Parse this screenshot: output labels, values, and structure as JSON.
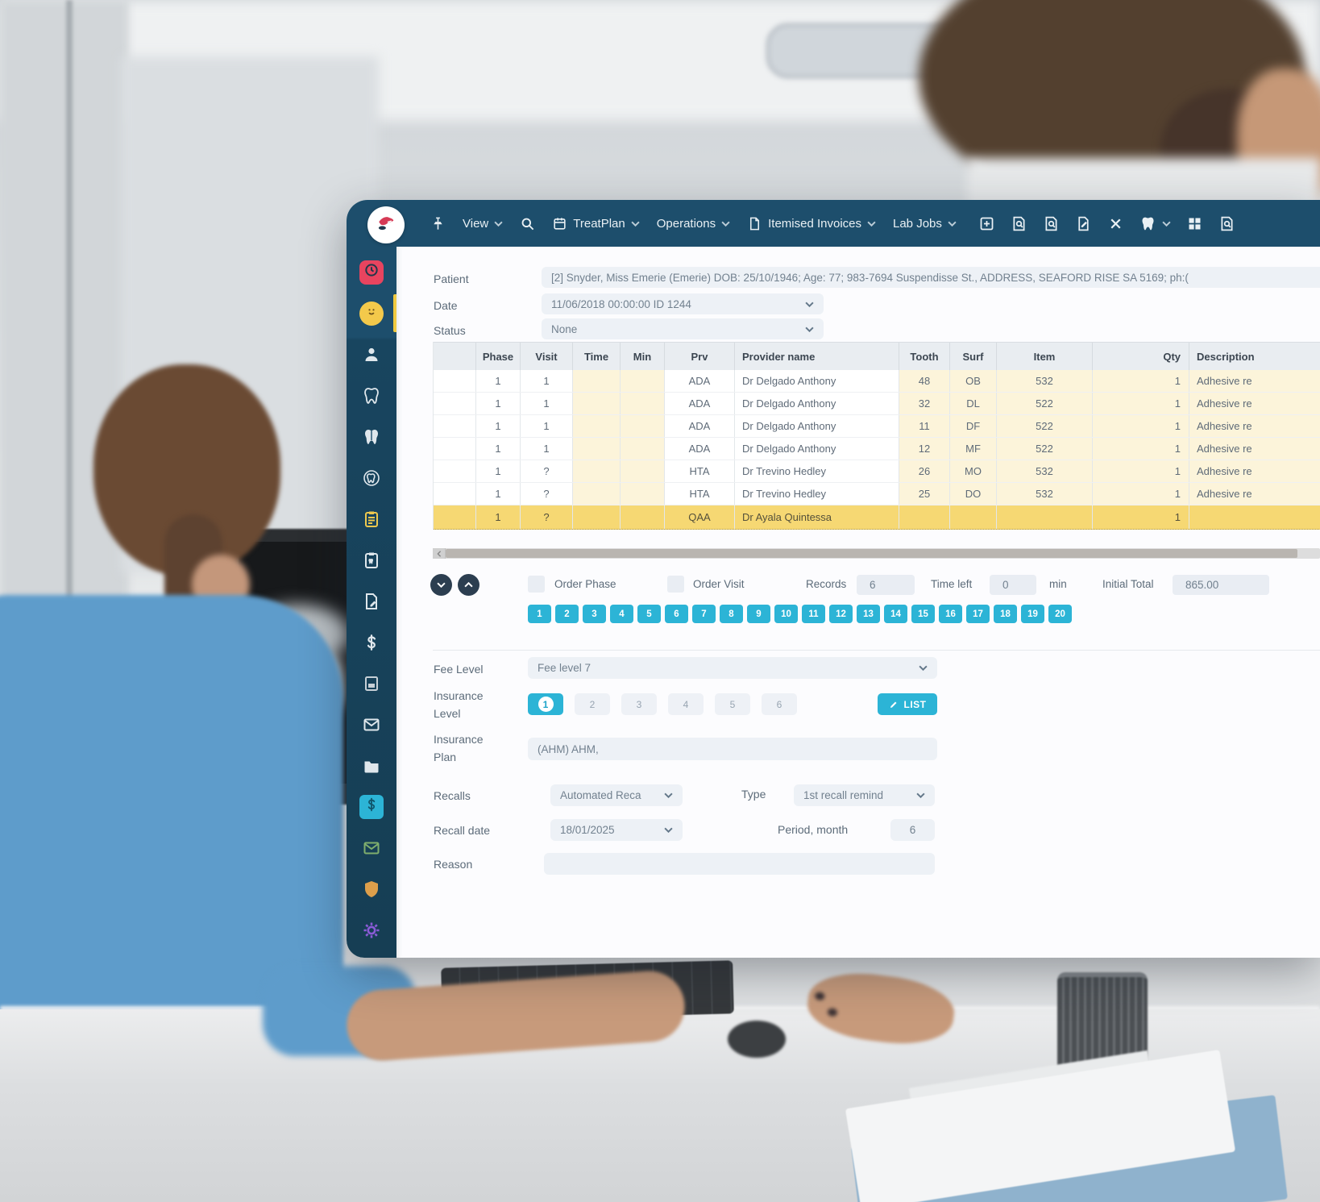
{
  "app": {
    "logo_name": "dental-logo",
    "toolbar": {
      "pin_icon": "pin",
      "search_icon": "search",
      "menus": [
        {
          "label": "View",
          "icon": null
        },
        {
          "label": "TreatPlan",
          "icon": "calendar"
        },
        {
          "label": "Operations",
          "icon": null
        },
        {
          "label": "Itemised Invoices",
          "icon": "doc"
        },
        {
          "label": "Lab Jobs",
          "icon": null
        }
      ],
      "action_icons": [
        {
          "name": "new-window-icon",
          "glyph": "plusSquare"
        },
        {
          "name": "patient-search-icon",
          "glyph": "docSearch"
        },
        {
          "name": "records-search-icon",
          "glyph": "docSearch"
        },
        {
          "name": "sign-document-icon",
          "glyph": "docPen"
        },
        {
          "name": "close-icon",
          "glyph": "xmark"
        },
        {
          "name": "tooth-menu-icon",
          "glyph": "toothSmall",
          "chevron": true
        },
        {
          "name": "grid-icon",
          "glyph": "grid"
        },
        {
          "name": "report-search-icon",
          "glyph": "docSearch"
        }
      ]
    },
    "sidebar": {
      "items": [
        {
          "name": "appointments",
          "glyph": "clock",
          "badge": "red"
        },
        {
          "name": "patient-mood",
          "glyph": "smile",
          "badge": "yellow",
          "active": true
        },
        {
          "name": "patient",
          "glyph": "person"
        },
        {
          "name": "tooth-chart",
          "glyph": "tooth"
        },
        {
          "name": "restorative-chart",
          "glyph": "toothSolid"
        },
        {
          "name": "perio-chart",
          "glyph": "toothCircle"
        },
        {
          "name": "treatment-plan",
          "glyph": "clipboard",
          "color": "#ecc84e"
        },
        {
          "name": "chart-notes",
          "glyph": "clipboardTooth"
        },
        {
          "name": "documents",
          "glyph": "docEdit"
        },
        {
          "name": "payments",
          "glyph": "dollar"
        },
        {
          "name": "statements",
          "glyph": "panel",
          "color": "#c6cfd6"
        },
        {
          "name": "mail",
          "glyph": "envelope"
        },
        {
          "name": "files",
          "glyph": "folder"
        },
        {
          "name": "billing",
          "glyph": "dollar",
          "badge": "cyan"
        },
        {
          "name": "claims",
          "glyph": "envelope",
          "color": "#7fae6d"
        },
        {
          "name": "insurance",
          "glyph": "shield",
          "color": "#dd9f4b"
        },
        {
          "name": "settings",
          "glyph": "gear",
          "color": "#8a5bd6"
        }
      ]
    },
    "patient_bar": {
      "patient_label": "Patient",
      "patient_value": "[2] Snyder, Miss Emerie (Emerie) DOB: 25/10/1946; Age: 77; 983-7694 Suspendisse St., ADDRESS, SEAFORD RISE SA 5169; ph:(",
      "date_label": "Date",
      "date_value": "11/06/2018 00:00:00 ID 1244",
      "status_label": "Status",
      "status_value": "None"
    },
    "table": {
      "columns": [
        "Phase",
        "Visit",
        "Time",
        "Min",
        "Prv",
        "Provider name",
        "Tooth",
        "Surf",
        "Item",
        "Qty",
        "Description"
      ],
      "rows": [
        {
          "cells": [
            "1",
            "1",
            "",
            "",
            "ADA",
            "Dr Delgado Anthony",
            "48",
            "OB",
            "532",
            "1",
            "Adhesive re"
          ],
          "selected": false
        },
        {
          "cells": [
            "1",
            "1",
            "",
            "",
            "ADA",
            "Dr Delgado Anthony",
            "32",
            "DL",
            "522",
            "1",
            "Adhesive re"
          ],
          "selected": false
        },
        {
          "cells": [
            "1",
            "1",
            "",
            "",
            "ADA",
            "Dr Delgado Anthony",
            "11",
            "DF",
            "522",
            "1",
            "Adhesive re"
          ],
          "selected": false
        },
        {
          "cells": [
            "1",
            "1",
            "",
            "",
            "ADA",
            "Dr Delgado Anthony",
            "12",
            "MF",
            "522",
            "1",
            "Adhesive re"
          ],
          "selected": false
        },
        {
          "cells": [
            "1",
            "?",
            "",
            "",
            "HTA",
            "Dr Trevino Hedley",
            "26",
            "MO",
            "532",
            "1",
            "Adhesive re"
          ],
          "selected": false
        },
        {
          "cells": [
            "1",
            "?",
            "",
            "",
            "HTA",
            "Dr Trevino Hedley",
            "25",
            "DO",
            "532",
            "1",
            "Adhesive re"
          ],
          "selected": false
        },
        {
          "cells": [
            "1",
            "?",
            "",
            "",
            "QAA",
            "Dr Ayala Quintessa",
            "",
            "",
            "",
            "1",
            ""
          ],
          "selected": true
        }
      ]
    },
    "table_footer": {
      "order_phase_label": "Order Phase",
      "order_visit_label": "Order Visit",
      "records_label": "Records",
      "records_value": "6",
      "time_left_label": "Time left",
      "time_left_value": "0",
      "min_label": "min",
      "initial_total_label": "Initial Total",
      "initial_total_value": "865.00"
    },
    "visit_pages": [
      "1",
      "2",
      "3",
      "4",
      "5",
      "6",
      "7",
      "8",
      "9",
      "10",
      "11",
      "12",
      "13",
      "14",
      "15",
      "16",
      "17",
      "18",
      "19",
      "20"
    ],
    "form": {
      "fee_level": {
        "label": "Fee Level",
        "value": "Fee level 7"
      },
      "insurance_level": {
        "label": "Insurance Level",
        "options": [
          "1",
          "2",
          "3",
          "4",
          "5",
          "6"
        ],
        "selected": "1",
        "list_button": "LIST"
      },
      "insurance_plan": {
        "label": "Insurance Plan",
        "value": "(AHM) AHM,"
      },
      "recalls": {
        "label": "Recalls",
        "value": "Automated Reca"
      },
      "type": {
        "label": "Type",
        "value": "1st recall remind"
      },
      "recall_date": {
        "label": "Recall date",
        "value": "18/01/2025"
      },
      "period_month": {
        "label": "Period, month",
        "value": "6"
      },
      "reason": {
        "label": "Reason",
        "value": ""
      }
    },
    "colors": {
      "navy": "#1d4e6c",
      "sidebar_navy": "#163e54",
      "accent_cyan": "#2cb4d6",
      "selected_row": "#f6d873",
      "editable_cell": "#fcf4da",
      "active_yellow": "#f0c93f",
      "field_bg": "#edf1f6",
      "logo_red": "#d63a55"
    }
  }
}
